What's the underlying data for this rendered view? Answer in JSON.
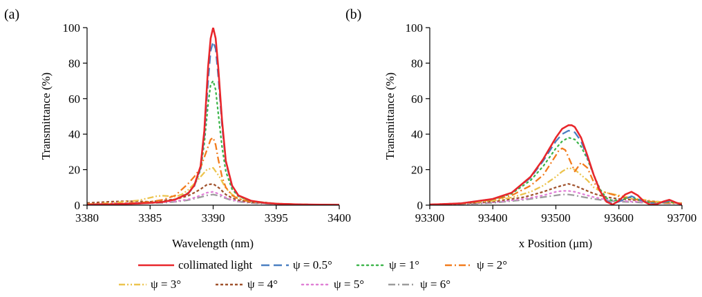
{
  "panels": [
    {
      "label": "(a)",
      "xlabel": "Wavelength (nm)",
      "ylabel": "Transmittance (%)",
      "xlim": [
        3380,
        3400
      ],
      "ylim": [
        0,
        100
      ],
      "xticks": [
        "3380",
        "3385",
        "3390",
        "3395",
        "3400"
      ],
      "yticks": [
        "0",
        "20",
        "40",
        "60",
        "80",
        "100"
      ]
    },
    {
      "label": "(b)",
      "xlabel": "x Position (μm)",
      "ylabel": "Transmittance (%)",
      "xlim": [
        93300,
        93700
      ],
      "ylim": [
        0,
        100
      ],
      "xticks": [
        "93300",
        "93400",
        "93500",
        "93600",
        "93700"
      ],
      "yticks": [
        "0",
        "20",
        "40",
        "60",
        "80",
        "100"
      ]
    }
  ],
  "series_styles": [
    {
      "name": "collimated light",
      "color": "#e8262b",
      "dash": "solid"
    },
    {
      "name": "ψ = 0.5°",
      "color": "#4a7fc1",
      "dash": "longdash"
    },
    {
      "name": "ψ = 1°",
      "color": "#3cb54a",
      "dash": "dot"
    },
    {
      "name": "ψ = 2°",
      "color": "#f27b1c",
      "dash": "dashdot"
    },
    {
      "name": "ψ = 3°",
      "color": "#ecc44e",
      "dash": "dashdotdot"
    },
    {
      "name": "ψ = 4°",
      "color": "#a0522d",
      "dash": "shortdash"
    },
    {
      "name": "ψ = 5°",
      "color": "#e07fd6",
      "dash": "dot"
    },
    {
      "name": "ψ = 6°",
      "color": "#9c9c9c",
      "dash": "dashdot"
    }
  ],
  "chart_data": [
    {
      "type": "line",
      "xlabel": "Wavelength (nm)",
      "ylabel": "Transmittance (%)",
      "xlim": [
        3380,
        3400
      ],
      "ylim": [
        0,
        100
      ],
      "series": [
        {
          "name": "collimated light",
          "x": [
            3380,
            3382,
            3384,
            3385,
            3386,
            3387,
            3388,
            3388.5,
            3389,
            3389.3,
            3389.6,
            3389.8,
            3390,
            3390.2,
            3390.4,
            3390.7,
            3391,
            3391.5,
            3392,
            3393,
            3394,
            3395,
            3397,
            3400
          ],
          "y": [
            0.3,
            0.5,
            0.9,
            1.3,
            1.8,
            3.2,
            6.5,
            11,
            22,
            42,
            78,
            94,
            100,
            94,
            78,
            48,
            25,
            11,
            5.5,
            2.5,
            1.4,
            0.8,
            0.4,
            0.2
          ]
        },
        {
          "name": "ψ = 0.5°",
          "x": [
            3380,
            3382,
            3384,
            3385,
            3386,
            3387,
            3388,
            3388.5,
            3389,
            3389.3,
            3389.6,
            3389.8,
            3390,
            3390.2,
            3390.4,
            3390.7,
            3391,
            3391.5,
            3392,
            3393,
            3394,
            3395,
            3397,
            3400
          ],
          "y": [
            0.3,
            0.5,
            0.9,
            1.3,
            1.8,
            3.2,
            6.3,
            10.5,
            21,
            39,
            70,
            87,
            92,
            88,
            73,
            45,
            24,
            10.5,
            5.3,
            2.4,
            1.3,
            0.8,
            0.4,
            0.2
          ]
        },
        {
          "name": "ψ = 1°",
          "x": [
            3380,
            3382,
            3384,
            3386,
            3387,
            3388,
            3388.5,
            3389,
            3389.3,
            3389.6,
            3389.8,
            3390,
            3390.2,
            3390.4,
            3390.7,
            3391,
            3391.5,
            3392,
            3393,
            3395,
            3397,
            3400
          ],
          "y": [
            0.3,
            0.5,
            0.9,
            1.9,
            3.3,
            6.8,
            11,
            20,
            35,
            57,
            68,
            70,
            65,
            52,
            33,
            19,
            9,
            5,
            2.3,
            0.8,
            0.4,
            0.2
          ]
        },
        {
          "name": "ψ = 2°",
          "x": [
            3380,
            3382,
            3384,
            3385,
            3386,
            3387,
            3388,
            3388.5,
            3389,
            3389.3,
            3389.6,
            3389.8,
            3390,
            3390.2,
            3390.4,
            3390.7,
            3391,
            3391.5,
            3392,
            3393,
            3395,
            3397,
            3400
          ],
          "y": [
            0.4,
            0.7,
            1.3,
            1.9,
            3,
            5.5,
            12,
            16,
            21,
            27,
            33,
            37,
            38,
            34,
            26,
            16,
            10,
            5.5,
            3.5,
            1.8,
            0.8,
            0.4,
            0.2
          ]
        },
        {
          "name": "ψ = 3°",
          "x": [
            3380,
            3382,
            3384,
            3385,
            3385.5,
            3386,
            3386.5,
            3387,
            3387.5,
            3388,
            3388.5,
            3389,
            3389.5,
            3390,
            3390.5,
            3391,
            3391.5,
            3392,
            3393,
            3395,
            3397,
            3400
          ],
          "y": [
            0.6,
            1.2,
            2.6,
            4.2,
            5,
            5.3,
            5.1,
            4.8,
            6,
            8.5,
            12,
            16,
            20,
            21,
            16,
            9.5,
            6,
            4,
            2.2,
            0.9,
            0.4,
            0.2
          ]
        },
        {
          "name": "ψ = 4°",
          "x": [
            3380,
            3382,
            3383,
            3384,
            3385,
            3386,
            3387,
            3388,
            3388.5,
            3389,
            3389.5,
            3390,
            3390.5,
            3391,
            3391.5,
            3392,
            3393,
            3395,
            3397,
            3400
          ],
          "y": [
            1.2,
            2,
            2.2,
            2.1,
            1.9,
            2.6,
            3.3,
            5.2,
            7,
            9,
            11.5,
            12,
            9.5,
            6,
            4,
            2.8,
            1.6,
            0.8,
            0.4,
            0.2
          ]
        },
        {
          "name": "ψ = 5°",
          "x": [
            3380,
            3382,
            3384,
            3386,
            3387,
            3388,
            3388.5,
            3389,
            3389.5,
            3390,
            3390.5,
            3391,
            3391.5,
            3392,
            3393,
            3395,
            3397,
            3400
          ],
          "y": [
            0.8,
            1.1,
            1.3,
            1.6,
            2.2,
            3.2,
            4.2,
            5.5,
            7,
            7.5,
            6.2,
            4.3,
            3,
            2.2,
            1.4,
            0.7,
            0.4,
            0.2
          ]
        },
        {
          "name": "ψ = 6°",
          "x": [
            3380,
            3382,
            3384,
            3386,
            3387,
            3388,
            3388.5,
            3389,
            3389.5,
            3390,
            3390.5,
            3391,
            3391.5,
            3392,
            3393,
            3395,
            3397,
            3400
          ],
          "y": [
            0.5,
            0.8,
            1,
            1.3,
            1.9,
            2.8,
            3.6,
            4.5,
            5.5,
            6,
            5.2,
            3.8,
            2.7,
            2,
            1.2,
            0.6,
            0.3,
            0.2
          ]
        }
      ]
    },
    {
      "type": "line",
      "xlabel": "x Position (μm)",
      "ylabel": "Transmittance (%)",
      "xlim": [
        93300,
        93700
      ],
      "ylim": [
        0,
        100
      ],
      "series": [
        {
          "name": "collimated light",
          "x": [
            93300,
            93350,
            93400,
            93430,
            93460,
            93480,
            93500,
            93510,
            93520,
            93525,
            93530,
            93540,
            93550,
            93560,
            93570,
            93580,
            93590,
            93600,
            93610,
            93620,
            93630,
            93640,
            93650,
            93660,
            93670,
            93680,
            93690,
            93700
          ],
          "y": [
            0.3,
            1,
            3.5,
            7,
            16,
            26,
            38,
            43,
            45,
            45,
            44,
            38,
            28,
            17,
            8,
            2,
            0.3,
            2.5,
            6,
            7.5,
            5.5,
            2,
            0.2,
            0.5,
            2,
            3,
            1.5,
            0.2
          ]
        },
        {
          "name": "ψ = 0.5°",
          "x": [
            93300,
            93350,
            93400,
            93430,
            93460,
            93480,
            93500,
            93510,
            93520,
            93530,
            93540,
            93550,
            93560,
            93570,
            93580,
            93590,
            93600,
            93620,
            93640,
            93660,
            93680,
            93700
          ],
          "y": [
            0.3,
            1,
            3.5,
            7,
            15.5,
            25,
            36,
            40,
            42,
            41,
            36,
            27,
            17,
            8,
            2.5,
            0.7,
            2,
            5,
            2,
            0.6,
            2.5,
            0.3
          ]
        },
        {
          "name": "ψ = 1°",
          "x": [
            93300,
            93350,
            93400,
            93430,
            93460,
            93480,
            93500,
            93510,
            93520,
            93530,
            93540,
            93550,
            93560,
            93570,
            93580,
            93590,
            93600,
            93620,
            93640,
            93660,
            93680,
            93700
          ],
          "y": [
            0.3,
            1,
            3.3,
            6.5,
            14,
            22,
            32,
            36,
            38,
            37,
            33,
            26,
            17,
            9,
            4,
            2.5,
            3,
            4.5,
            2,
            1,
            2,
            0.5
          ]
        },
        {
          "name": "ψ = 2°",
          "x": [
            93300,
            93350,
            93400,
            93430,
            93460,
            93480,
            93500,
            93505,
            93510,
            93515,
            93520,
            93530,
            93540,
            93550,
            93560,
            93570,
            93580,
            93590,
            93600,
            93620,
            93640,
            93660,
            93680,
            93700
          ],
          "y": [
            0.3,
            1,
            3,
            5.5,
            11,
            17,
            28,
            31,
            32,
            31,
            27,
            19,
            24,
            21,
            13,
            8,
            7,
            6,
            5,
            3.5,
            2.5,
            1.5,
            1.2,
            1
          ]
        },
        {
          "name": "ψ = 3°",
          "x": [
            93300,
            93350,
            93400,
            93430,
            93460,
            93480,
            93500,
            93510,
            93520,
            93530,
            93540,
            93550,
            93560,
            93570,
            93580,
            93600,
            93620,
            93640,
            93660,
            93680,
            93700
          ],
          "y": [
            0.3,
            0.9,
            2.5,
            4.3,
            7.5,
            11,
            16,
            19,
            21,
            20,
            17,
            14,
            10,
            8,
            7,
            5.5,
            4,
            3,
            2,
            1.5,
            1
          ]
        },
        {
          "name": "ψ = 4°",
          "x": [
            93300,
            93350,
            93400,
            93450,
            93480,
            93500,
            93510,
            93520,
            93530,
            93540,
            93560,
            93580,
            93600,
            93620,
            93640,
            93660,
            93680,
            93700
          ],
          "y": [
            0.3,
            0.8,
            2,
            4.5,
            7.5,
            10,
            11,
            12,
            11,
            9.5,
            6.5,
            4.5,
            3.5,
            3,
            2.5,
            2,
            1.5,
            1
          ]
        },
        {
          "name": "ψ = 5°",
          "x": [
            93300,
            93350,
            93400,
            93450,
            93480,
            93500,
            93510,
            93520,
            93530,
            93540,
            93560,
            93580,
            93600,
            93620,
            93640,
            93660,
            93680,
            93700
          ],
          "y": [
            0.3,
            0.7,
            1.6,
            3.5,
            5.5,
            7.5,
            8,
            8,
            7.5,
            6.5,
            4.5,
            3,
            2.5,
            2,
            1.8,
            1.5,
            1.2,
            1
          ]
        },
        {
          "name": "ψ = 6°",
          "x": [
            93300,
            93350,
            93400,
            93450,
            93480,
            93500,
            93510,
            93520,
            93530,
            93540,
            93560,
            93580,
            93600,
            93620,
            93640,
            93660,
            93680,
            93700
          ],
          "y": [
            0.3,
            0.6,
            1.3,
            3,
            4.5,
            5.5,
            6,
            6,
            5.5,
            4.8,
            3.5,
            2.5,
            2,
            1.7,
            1.4,
            1.2,
            1,
            0.8
          ]
        }
      ]
    }
  ]
}
